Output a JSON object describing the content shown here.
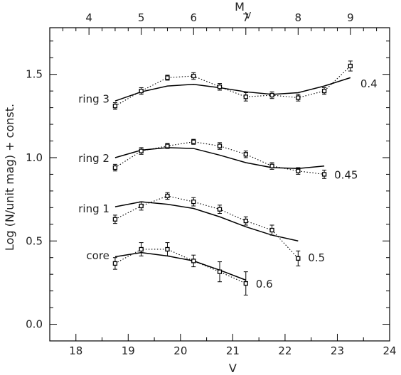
{
  "chart_data": {
    "type": "line",
    "xlabel": "V",
    "ylabel": "Log (N/unit mag) + const.",
    "top_axis_label": "M",
    "top_axis_label_subscript": "V",
    "xlim": [
      17.5,
      24
    ],
    "ylim": [
      -0.1,
      1.78
    ],
    "top_axis_offset": 14.25,
    "x_ticks": [
      18,
      19,
      20,
      21,
      22,
      23,
      24
    ],
    "y_ticks": [
      0.0,
      0.5,
      1.0,
      1.5
    ],
    "y_tick_labels": [
      "0.0",
      "0.5",
      "1.0",
      "1.5"
    ],
    "top_ticks": [
      4,
      5,
      6,
      7,
      8,
      9
    ],
    "grid": false,
    "series": [
      {
        "name": "ring 3",
        "slope_label": "0.4",
        "observed": {
          "x": [
            18.75,
            19.25,
            19.75,
            20.25,
            20.75,
            21.25,
            21.75,
            22.25,
            22.75,
            23.25
          ],
          "y": [
            1.31,
            1.4,
            1.48,
            1.49,
            1.425,
            1.365,
            1.375,
            1.36,
            1.4,
            1.55
          ],
          "err": [
            0.02,
            0.02,
            0.015,
            0.02,
            0.02,
            0.025,
            0.02,
            0.02,
            0.02,
            0.03
          ]
        },
        "model": {
          "x": [
            18.75,
            19.25,
            19.75,
            20.25,
            20.75,
            21.25,
            21.75,
            22.25,
            22.75,
            23.25
          ],
          "y": [
            1.34,
            1.395,
            1.43,
            1.44,
            1.42,
            1.395,
            1.38,
            1.39,
            1.43,
            1.48
          ]
        }
      },
      {
        "name": "ring 2",
        "slope_label": "0.45",
        "observed": {
          "x": [
            18.75,
            19.25,
            19.75,
            20.25,
            20.75,
            21.25,
            21.75,
            22.25,
            22.75
          ],
          "y": [
            0.94,
            1.04,
            1.07,
            1.095,
            1.07,
            1.02,
            0.95,
            0.92,
            0.9
          ],
          "err": [
            0.02,
            0.02,
            0.015,
            0.015,
            0.02,
            0.02,
            0.02,
            0.02,
            0.025
          ]
        },
        "model": {
          "x": [
            18.75,
            19.25,
            19.75,
            20.25,
            20.75,
            21.25,
            21.75,
            22.25,
            22.75
          ],
          "y": [
            1.0,
            1.045,
            1.06,
            1.055,
            1.015,
            0.97,
            0.94,
            0.935,
            0.95
          ]
        }
      },
      {
        "name": "ring 1",
        "slope_label": "0.5",
        "observed": {
          "x": [
            18.75,
            19.25,
            19.75,
            20.25,
            20.75,
            21.25,
            21.75,
            22.25
          ],
          "y": [
            0.63,
            0.71,
            0.77,
            0.735,
            0.69,
            0.62,
            0.565,
            0.395
          ],
          "err": [
            0.025,
            0.025,
            0.02,
            0.025,
            0.025,
            0.025,
            0.03,
            0.045
          ]
        },
        "model": {
          "x": [
            18.75,
            19.25,
            19.75,
            20.25,
            20.75,
            21.25,
            21.75,
            22.25
          ],
          "y": [
            0.705,
            0.735,
            0.72,
            0.695,
            0.645,
            0.585,
            0.535,
            0.5
          ]
        }
      },
      {
        "name": "core",
        "slope_label": "0.6",
        "observed": {
          "x": [
            18.75,
            19.25,
            19.75,
            20.25,
            20.75,
            21.25
          ],
          "y": [
            0.365,
            0.45,
            0.45,
            0.38,
            0.315,
            0.245
          ],
          "err": [
            0.035,
            0.04,
            0.04,
            0.035,
            0.06,
            0.07
          ]
        },
        "model": {
          "x": [
            18.75,
            19.25,
            19.75,
            20.25,
            20.75,
            21.25
          ],
          "y": [
            0.405,
            0.43,
            0.41,
            0.38,
            0.325,
            0.265
          ]
        }
      }
    ]
  }
}
